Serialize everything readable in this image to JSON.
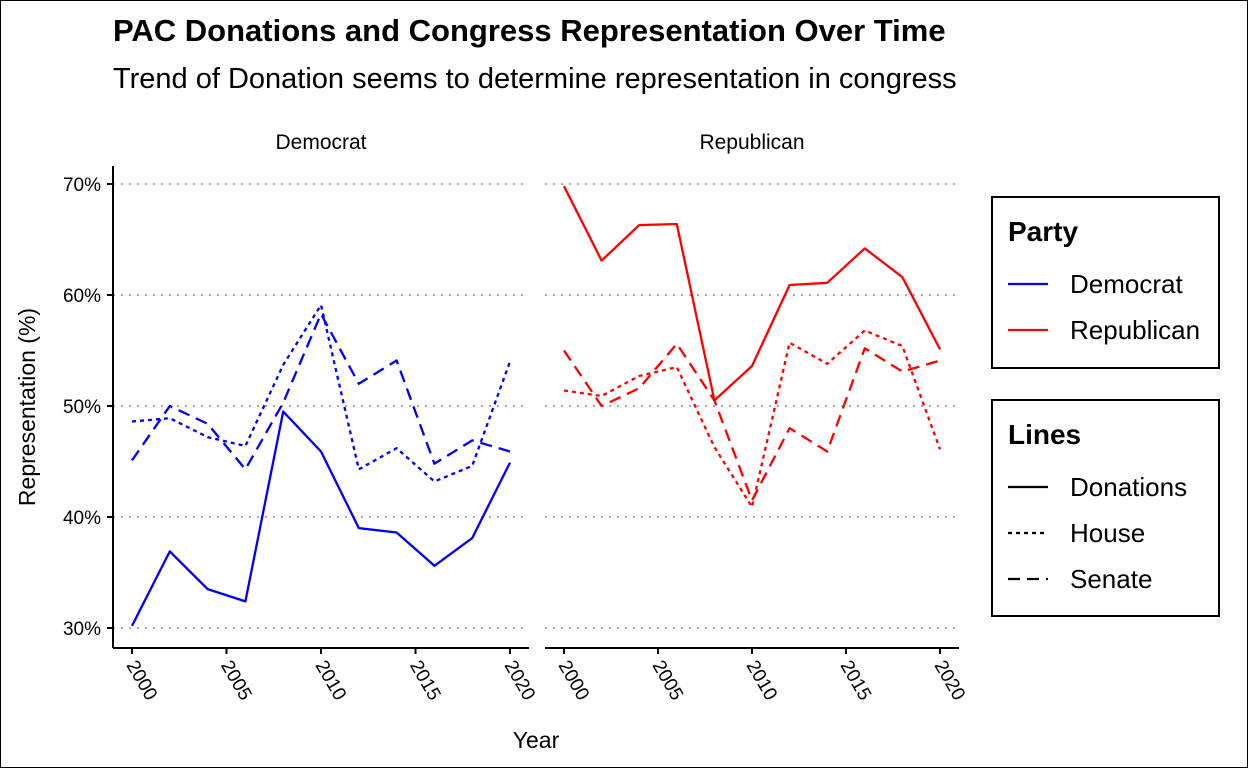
{
  "chart_data": {
    "type": "line",
    "title": "PAC Donations and Congress Representation Over Time",
    "subtitle": "Trend of Donation seems to determine representation in congress",
    "xlabel": "Year",
    "ylabel": "Representation (%)",
    "xlim": [
      1999,
      2021
    ],
    "ylim": [
      29,
      71.5
    ],
    "x_ticks": [
      2000,
      2005,
      2010,
      2015,
      2020
    ],
    "y_ticks": [
      30,
      40,
      50,
      60,
      70
    ],
    "y_tick_labels": [
      "30%",
      "40%",
      "50%",
      "60%",
      "70%"
    ],
    "grid": "horizontal dotted",
    "legend_position": "right",
    "colors": {
      "Democrat": "#0000FF",
      "Republican": "#FF0000"
    },
    "panels": [
      {
        "name": "Democrat",
        "color": "#0000FF",
        "series": [
          {
            "name": "Donations",
            "x": [
              2000,
              2002,
              2004,
              2006,
              2008,
              2010,
              2012,
              2014,
              2016,
              2018,
              2020
            ],
            "values": [
              30.2,
              36.9,
              33.5,
              32.4,
              49.5,
              45.9,
              39.0,
              38.6,
              35.6,
              38.1,
              44.9
            ]
          },
          {
            "name": "House",
            "x": [
              2000,
              2002,
              2004,
              2006,
              2008,
              2010,
              2012,
              2014,
              2016,
              2018,
              2020
            ],
            "values": [
              48.6,
              48.9,
              47.2,
              46.4,
              53.7,
              59.1,
              44.3,
              46.2,
              43.2,
              44.6,
              54.0
            ]
          },
          {
            "name": "Senate",
            "x": [
              2000,
              2002,
              2004,
              2006,
              2008,
              2010,
              2012,
              2014,
              2016,
              2018,
              2020
            ],
            "values": [
              45.1,
              50.0,
              48.4,
              44.3,
              50.3,
              58.3,
              52.0,
              54.1,
              44.8,
              46.9,
              45.9
            ]
          }
        ]
      },
      {
        "name": "Republican",
        "color": "#FF0000",
        "series": [
          {
            "name": "Donations",
            "x": [
              2000,
              2002,
              2004,
              2006,
              2008,
              2010,
              2012,
              2014,
              2016,
              2018,
              2020
            ],
            "values": [
              69.8,
              63.1,
              66.3,
              66.4,
              50.5,
              53.6,
              60.9,
              61.1,
              64.2,
              61.6,
              55.1
            ]
          },
          {
            "name": "House",
            "x": [
              2000,
              2002,
              2004,
              2006,
              2008,
              2010,
              2012,
              2014,
              2016,
              2018,
              2020
            ],
            "values": [
              51.4,
              50.9,
              52.7,
              53.5,
              46.3,
              40.9,
              55.7,
              53.8,
              56.8,
              55.4,
              46.1
            ]
          },
          {
            "name": "Senate",
            "x": [
              2000,
              2002,
              2004,
              2006,
              2008,
              2010,
              2012,
              2014,
              2016,
              2018,
              2020
            ],
            "values": [
              55.0,
              50.0,
              51.6,
              55.6,
              50.5,
              41.5,
              48.0,
              45.9,
              55.2,
              53.1,
              54.1
            ]
          }
        ]
      }
    ],
    "legends": [
      {
        "title": "Party",
        "entries": [
          {
            "label": "Democrat",
            "color": "#0000FF",
            "dash": "solid"
          },
          {
            "label": "Republican",
            "color": "#FF0000",
            "dash": "solid"
          }
        ]
      },
      {
        "title": "Lines",
        "entries": [
          {
            "label": "Donations",
            "color": "#000000",
            "dash": "solid"
          },
          {
            "label": "House",
            "color": "#000000",
            "dash": "dotted"
          },
          {
            "label": "Senate",
            "color": "#000000",
            "dash": "dashed"
          }
        ]
      }
    ]
  }
}
